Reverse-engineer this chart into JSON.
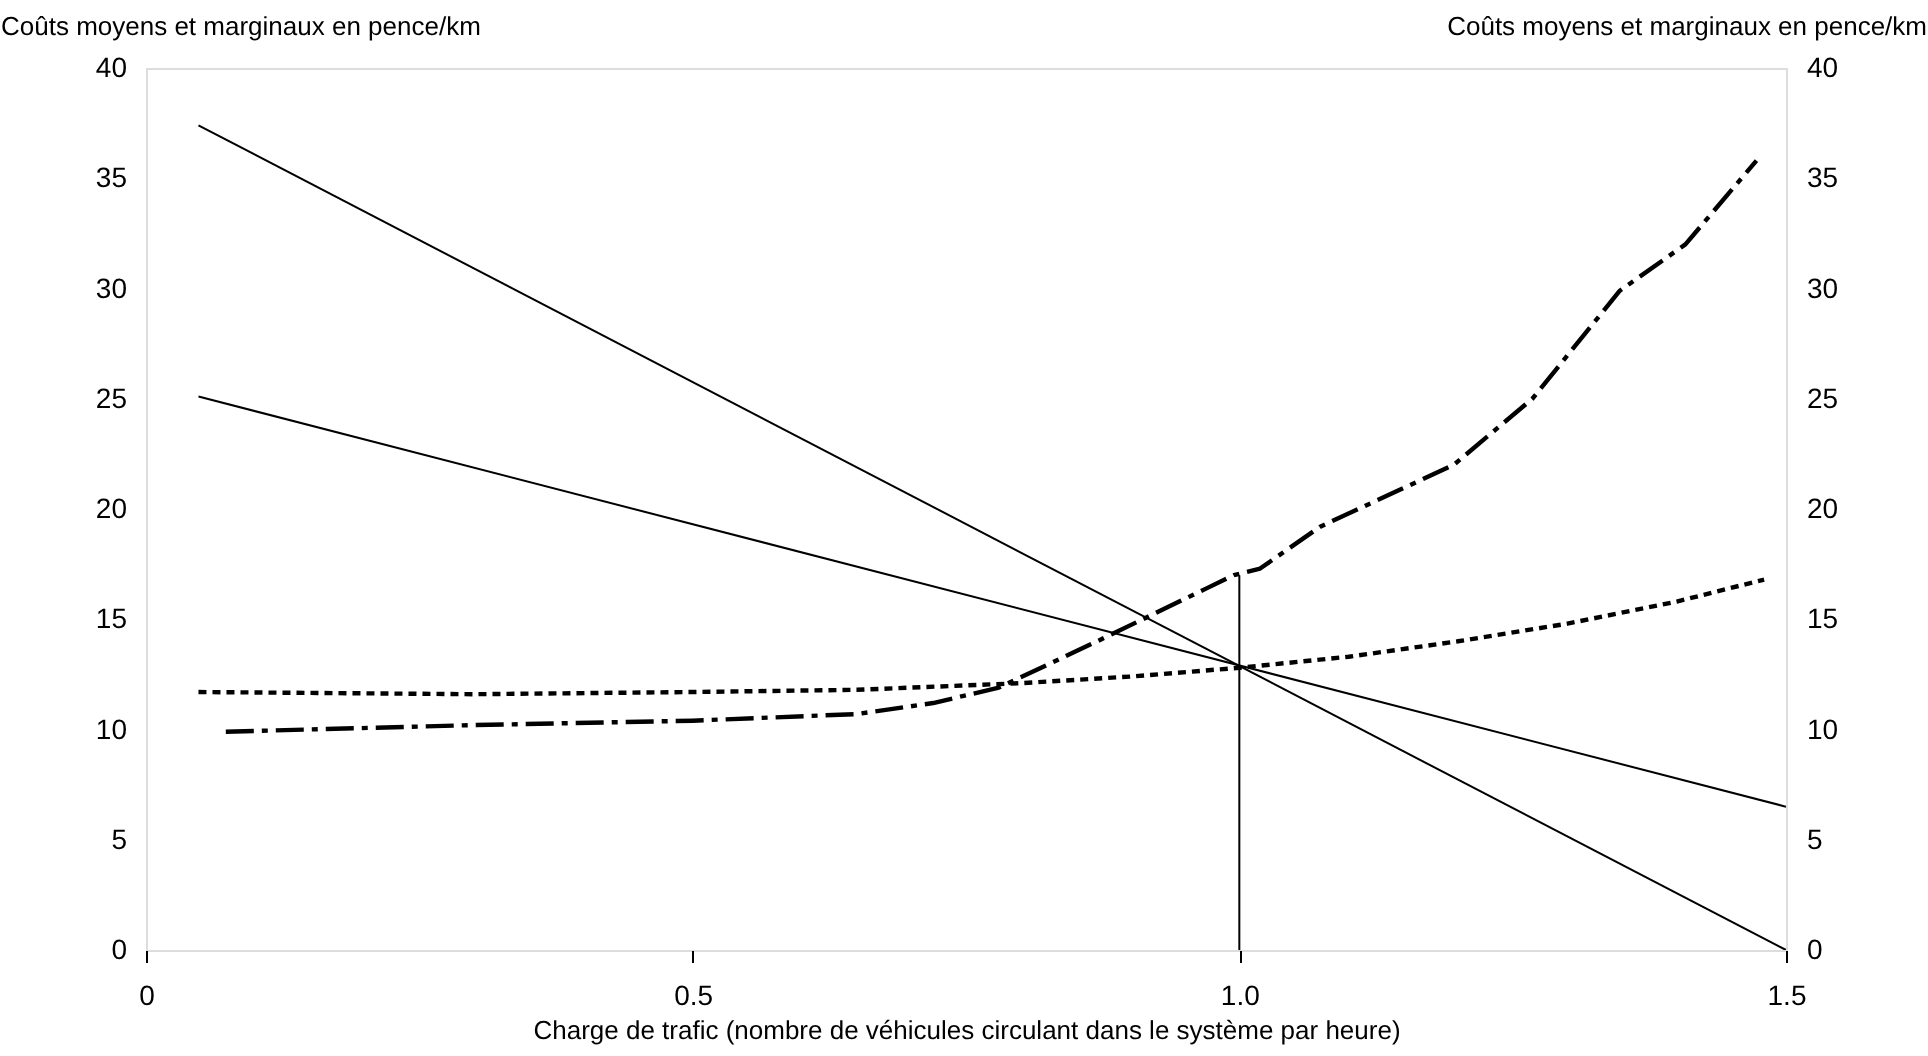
{
  "chart_data": {
    "type": "line",
    "xlabel": "Charge de trafic (nombre de véhicules circulant dans le système par heure)",
    "ylabel": "Coûts moyens et marginaux en pence/km",
    "y2label": "Coûts moyens et marginaux en pence/km",
    "xlim": [
      0,
      1.5
    ],
    "xticks": [
      0,
      {
        "value": 0.5,
        "label": "0.5"
      },
      {
        "value": 1,
        "label": "1.0"
      },
      {
        "value": 1.5,
        "label": "1.5"
      }
    ],
    "ylim": [
      0,
      40
    ],
    "yticks": [
      0,
      5,
      10,
      15,
      20,
      25,
      30,
      35,
      40
    ],
    "y2lim": [
      0,
      40
    ],
    "y2ticks": [
      0,
      5,
      10,
      15,
      20,
      25,
      30,
      35,
      40
    ],
    "grid": false,
    "marker": "none",
    "series": [
      {
        "color": "#000000",
        "line_style": "dashed",
        "x": [
          0.073,
          0.3,
          0.5,
          0.65,
          0.72,
          0.78,
          0.87,
          0.97,
          0.995,
          1.019,
          1.074,
          1.196,
          1.268,
          1.348,
          1.408,
          1.473
        ],
        "values": [
          9.9,
          10.2,
          10.4,
          10.7,
          11.2,
          11.9,
          14.0,
          16.4,
          17.0,
          17.3,
          19.2,
          22.0,
          25.0,
          29.9,
          32.0,
          35.8
        ]
      },
      {
        "color": "#000000",
        "line_style": "dotted",
        "x": [
          0.048,
          0.3,
          0.5,
          0.65,
          0.8,
          0.9,
          1.0,
          1.1,
          1.2,
          1.3,
          1.4,
          1.48
        ],
        "values": [
          11.7,
          11.6,
          11.7,
          11.8,
          12.1,
          12.4,
          12.8,
          13.3,
          14.0,
          14.8,
          15.8,
          16.8
        ]
      },
      {
        "color": "#000000",
        "line_style": "solid",
        "x": [
          0.048,
          1.5
        ],
        "values": [
          37.4,
          0
        ]
      },
      {
        "color": "#000000",
        "line_style": "solid",
        "x": [
          0.048,
          1.5
        ],
        "values": [
          25.1,
          6.5
        ]
      },
      {
        "color": "#000000",
        "line_style": "solid",
        "x": [
          1.0,
          1.0
        ],
        "values": [
          0,
          17.0
        ]
      }
    ]
  }
}
